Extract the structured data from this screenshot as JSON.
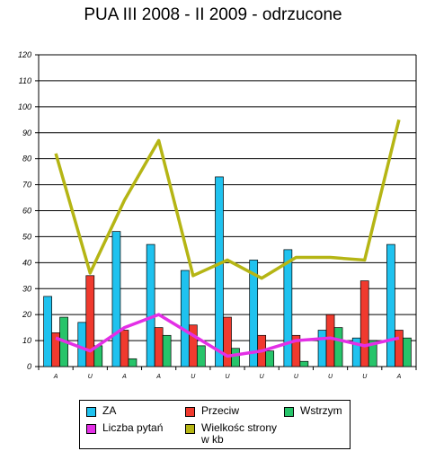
{
  "chart_data": {
    "type": "bar",
    "title": "PUA III 2008 - II 2009 - odrzucone",
    "xlabel": "",
    "ylabel": "",
    "ylim": [
      0,
      120
    ],
    "yticks": [
      "0",
      "10",
      "20",
      "30",
      "40",
      "50",
      "60",
      "70",
      "80",
      "90",
      "100",
      "110",
      "120"
    ],
    "grid": true,
    "legend_position": "bottom",
    "categories": [
      "A",
      "U",
      "A",
      "A",
      "U",
      "U",
      "U",
      "U",
      "U",
      "U",
      "A"
    ],
    "series": [
      {
        "name": "ZA",
        "type": "bar",
        "color": "#1fc2ef",
        "values": [
          27,
          17,
          52,
          47,
          37,
          73,
          41,
          45,
          14,
          11,
          47
        ]
      },
      {
        "name": "Przeciw",
        "type": "bar",
        "color": "#f03a2e",
        "values": [
          13,
          35,
          14,
          15,
          16,
          19,
          12,
          12,
          20,
          33,
          14
        ]
      },
      {
        "name": "Wstrzym",
        "type": "bar",
        "color": "#27c46a",
        "values": [
          19,
          8,
          3,
          12,
          8,
          7,
          6,
          2,
          15,
          10,
          11
        ]
      },
      {
        "name": "Liczba pytań",
        "type": "line",
        "color": "#e32fe6",
        "values": [
          11,
          6,
          15,
          20,
          12,
          4,
          6,
          10,
          11,
          8,
          11
        ]
      },
      {
        "name": "Wielkośc strony\nw kb",
        "type": "line",
        "color": "#b5b514",
        "values": [
          82,
          36,
          64,
          87,
          35,
          41,
          34,
          42,
          42,
          41,
          95
        ]
      }
    ]
  }
}
